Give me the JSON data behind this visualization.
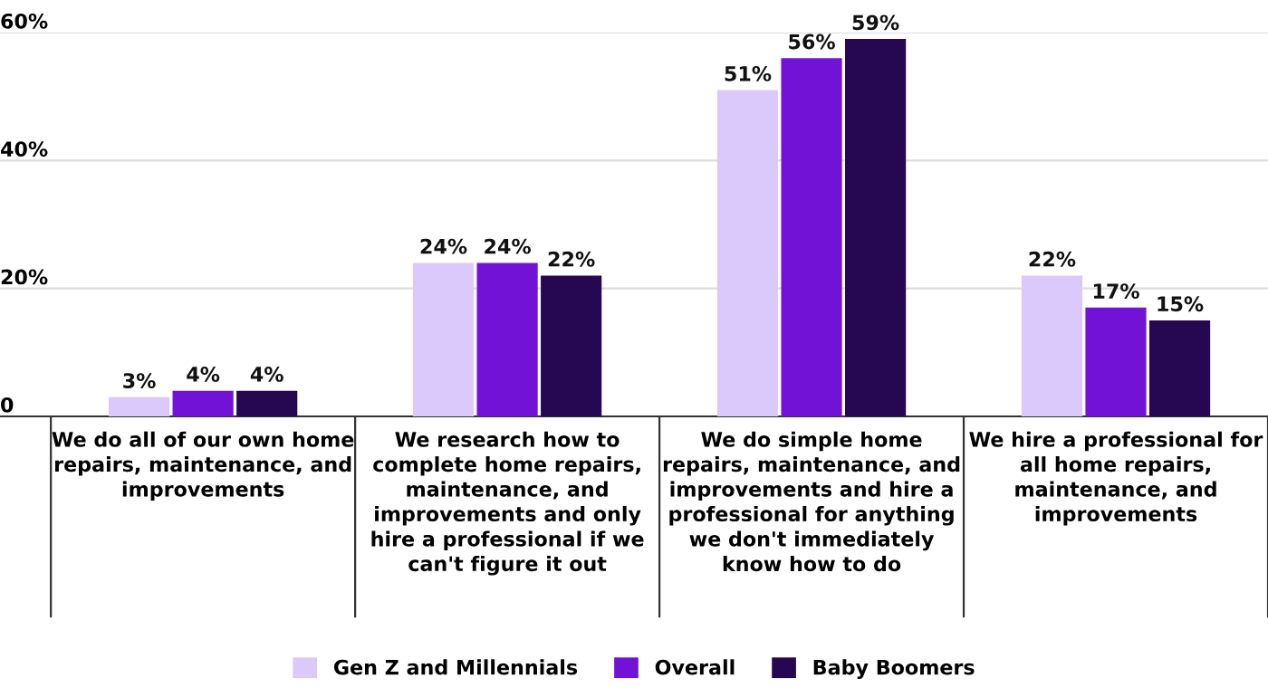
{
  "chart_data": {
    "type": "bar",
    "categories": [
      "We do all of our own home\nrepairs, maintenance, and\nimprovements",
      "We research how to\ncomplete home repairs,\nmaintenance, and\nimprovements and only\nhire a professional if we\ncan't figure it out",
      "We do simple home\nrepairs, maintenance, and\nimprovements and hire a\nprofessional for anything\nwe don't immediately\nknow how to do",
      "We hire a professional for\nall home repairs,\nmaintenance, and\nimprovements"
    ],
    "series": [
      {
        "name": "Gen Z and Millennials",
        "color": "#dcc9fb",
        "values": [
          3,
          24,
          51,
          22
        ],
        "value_labels": [
          "3%",
          "24%",
          "51%",
          "22%"
        ]
      },
      {
        "name": "Overall",
        "color": "#7212d6",
        "values": [
          4,
          24,
          56,
          17
        ],
        "value_labels": [
          "4%",
          "24%",
          "56%",
          "17%"
        ]
      },
      {
        "name": "Baby Boomers",
        "color": "#260752",
        "values": [
          4,
          22,
          59,
          15
        ],
        "value_labels": [
          "4%",
          "22%",
          "59%",
          "15%"
        ]
      }
    ],
    "ylim": [
      0,
      60
    ],
    "yticks": [
      0,
      {
        "value": 20,
        "label": "20%"
      },
      {
        "value": 40,
        "label": "40%"
      },
      {
        "value": 60,
        "label": "60%"
      }
    ],
    "grid": "y",
    "legend": "bottom"
  }
}
